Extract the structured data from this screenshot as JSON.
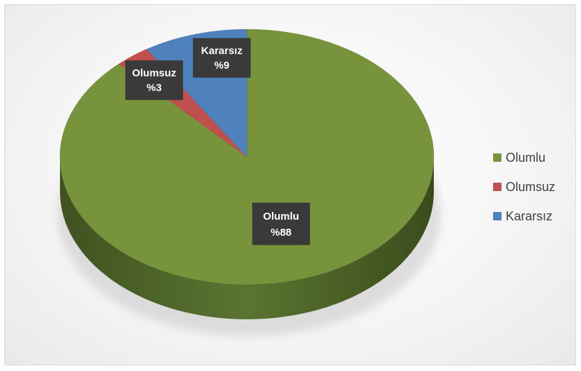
{
  "chart_data": {
    "type": "pie",
    "categories": [
      "Olumlu",
      "Olumsuz",
      "Kararsız"
    ],
    "values": [
      88,
      3,
      9
    ],
    "data_labels": [
      {
        "name": "Olumlu",
        "value": "%88"
      },
      {
        "name": "Olumsuz",
        "value": "%3"
      },
      {
        "name": "Kararsız",
        "value": "%9"
      }
    ],
    "colors": [
      "#77933c",
      "#c0504d",
      "#4f81bd"
    ],
    "legend_placement": "right",
    "style": "3d"
  }
}
